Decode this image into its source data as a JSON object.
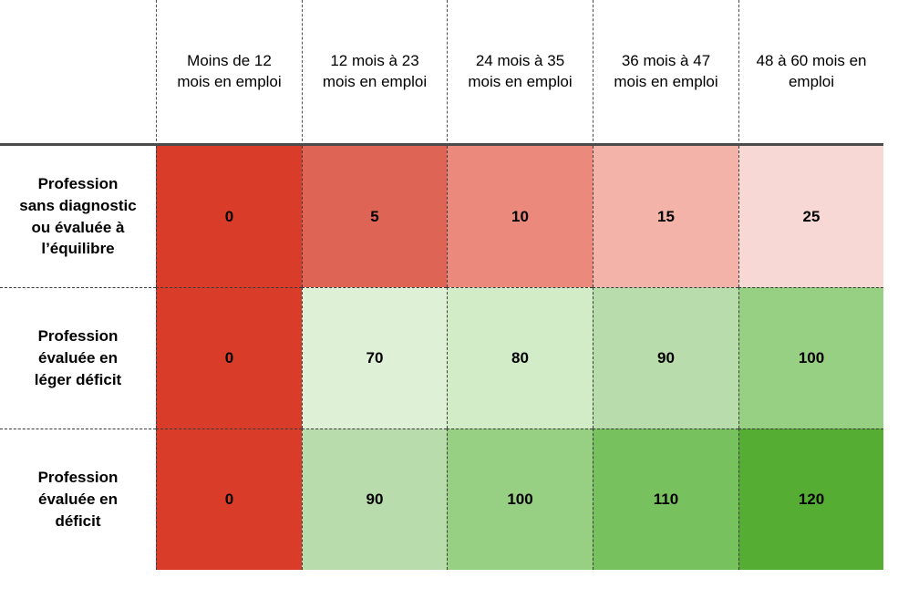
{
  "chart_data": {
    "type": "heatmap",
    "title": "",
    "columns": [
      {
        "label": "Moins de 12 mois en emploi",
        "lines": [
          "Moins de 12",
          "mois en emploi"
        ]
      },
      {
        "label": "12 mois à 23 mois en emploi",
        "lines": [
          "12 mois à 23",
          "mois en emploi"
        ]
      },
      {
        "label": "24 mois à 35 mois en emploi",
        "lines": [
          "24 mois à 35",
          "mois en emploi"
        ]
      },
      {
        "label": "36 mois à 47 mois en emploi",
        "lines": [
          "36 mois à 47",
          "mois en emploi"
        ]
      },
      {
        "label": "48 à 60 mois en emploi",
        "lines": [
          "48 à 60 mois en",
          "emploi"
        ]
      }
    ],
    "rows": [
      {
        "label": "Profession sans diagnostic ou évaluée à l’équilibre",
        "lines": [
          "Profession",
          "sans diagnostic",
          "ou évaluée à",
          "l’équilibre"
        ],
        "values": [
          0,
          5,
          10,
          15,
          25
        ],
        "colors": [
          "#d93c28",
          "#de6456",
          "#ea897c",
          "#f3b3a9",
          "#f7d8d4"
        ]
      },
      {
        "label": "Profession évaluée en léger déficit",
        "lines": [
          "Profession",
          "évaluée en",
          "léger déficit"
        ],
        "values": [
          0,
          70,
          80,
          90,
          100
        ],
        "colors": [
          "#d93c28",
          "#def1d6",
          "#d2ecc8",
          "#b8dcab",
          "#97cf83"
        ]
      },
      {
        "label": "Profession évaluée en déficit",
        "lines": [
          "Profession",
          "évaluée en",
          "déficit"
        ],
        "values": [
          0,
          90,
          100,
          110,
          120
        ],
        "colors": [
          "#d93c28",
          "#b8dcab",
          "#97cf83",
          "#77c25e",
          "#56ad33"
        ]
      }
    ],
    "layout_hints": {
      "legend": "none",
      "grid": "dashed dotted separators between all cells, solid horizontal rule under column headers",
      "header_rule_color": "#4a4a4a",
      "separator_color": "#3b3b3b"
    }
  }
}
